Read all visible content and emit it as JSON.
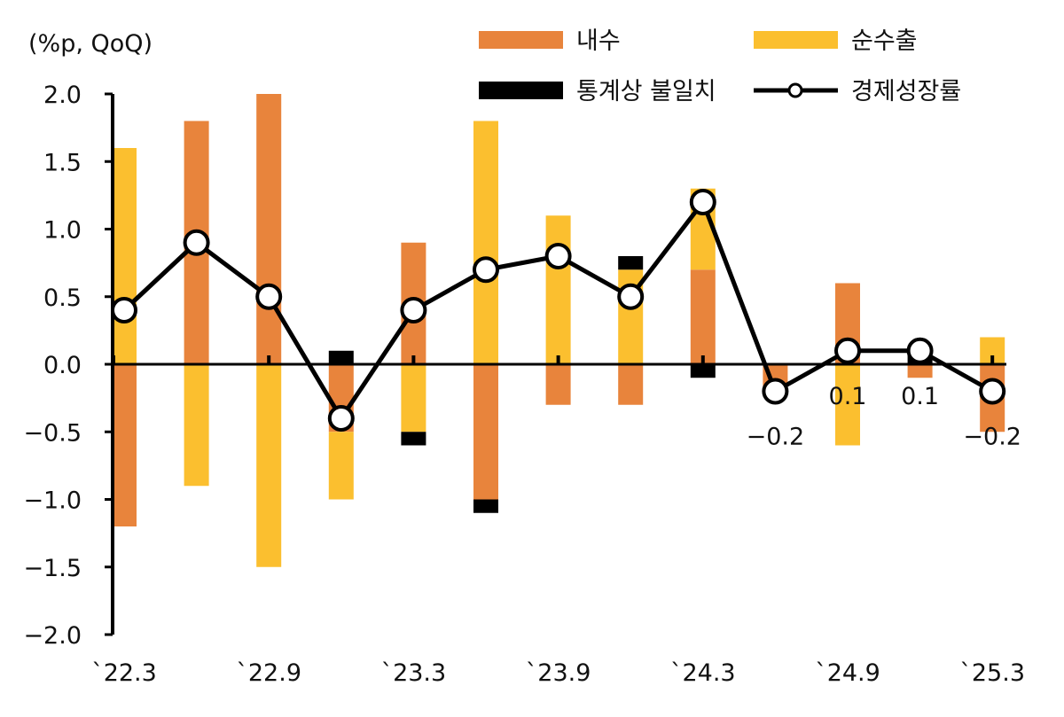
{
  "chart_data": {
    "type": "bar",
    "stacked": true,
    "unit_label": "(%p, QoQ)",
    "categories": [
      "`22.3",
      "`22.6",
      "`22.9",
      "`22.12",
      "`23.3",
      "`23.6",
      "`23.9",
      "`23.12",
      "`24.3",
      "`24.6",
      "`24.9",
      "`24.12",
      "`25.3"
    ],
    "x_tick_labels": [
      "`22.3",
      "`22.9",
      "`23.3",
      "`23.9",
      "`24.3",
      "`24.9",
      "`25.3"
    ],
    "ylim": [
      -2.0,
      2.0
    ],
    "y_ticks": [
      "2.0",
      "1.5",
      "1.0",
      "0.5",
      "0.0",
      "-0.5",
      "-1.0",
      "-1.5",
      "-2.0"
    ],
    "y_tick_values": [
      2.0,
      1.5,
      1.0,
      0.5,
      0.0,
      -0.5,
      -1.0,
      -1.5,
      -2.0
    ],
    "series": [
      {
        "name": "내수",
        "kind": "bar",
        "color": "#E8843C",
        "values": [
          -1.2,
          1.8,
          2.0,
          -0.5,
          0.9,
          -1.0,
          -0.3,
          -0.3,
          0.7,
          -0.2,
          0.6,
          -0.1,
          -0.5
        ]
      },
      {
        "name": "순수출",
        "kind": "bar",
        "color": "#FBBF2F",
        "values": [
          1.6,
          -0.9,
          -1.5,
          -0.5,
          -0.5,
          1.8,
          1.1,
          0.7,
          0.6,
          0.0,
          -0.6,
          0.0,
          0.2
        ]
      },
      {
        "name": "통계상 불일치",
        "kind": "bar",
        "color": "#000000",
        "values": [
          0.0,
          0.0,
          0.0,
          0.1,
          -0.1,
          -0.1,
          0.0,
          0.1,
          -0.1,
          0.0,
          0.0,
          0.1,
          0.0
        ]
      },
      {
        "name": "경제성장률",
        "kind": "line",
        "color": "#000000",
        "values": [
          0.4,
          0.9,
          0.5,
          -0.4,
          0.4,
          0.7,
          0.8,
          0.5,
          1.2,
          -0.2,
          0.1,
          0.1,
          -0.2
        ]
      }
    ],
    "data_labels": [
      {
        "index": 9,
        "text": "-0.2",
        "position": "below"
      },
      {
        "index": 10,
        "text": "0.1",
        "position": "below"
      },
      {
        "index": 11,
        "text": "0.1",
        "position": "below"
      },
      {
        "index": 12,
        "text": "-0.2",
        "position": "below"
      }
    ],
    "legend_position": "top-right",
    "grid": false
  }
}
